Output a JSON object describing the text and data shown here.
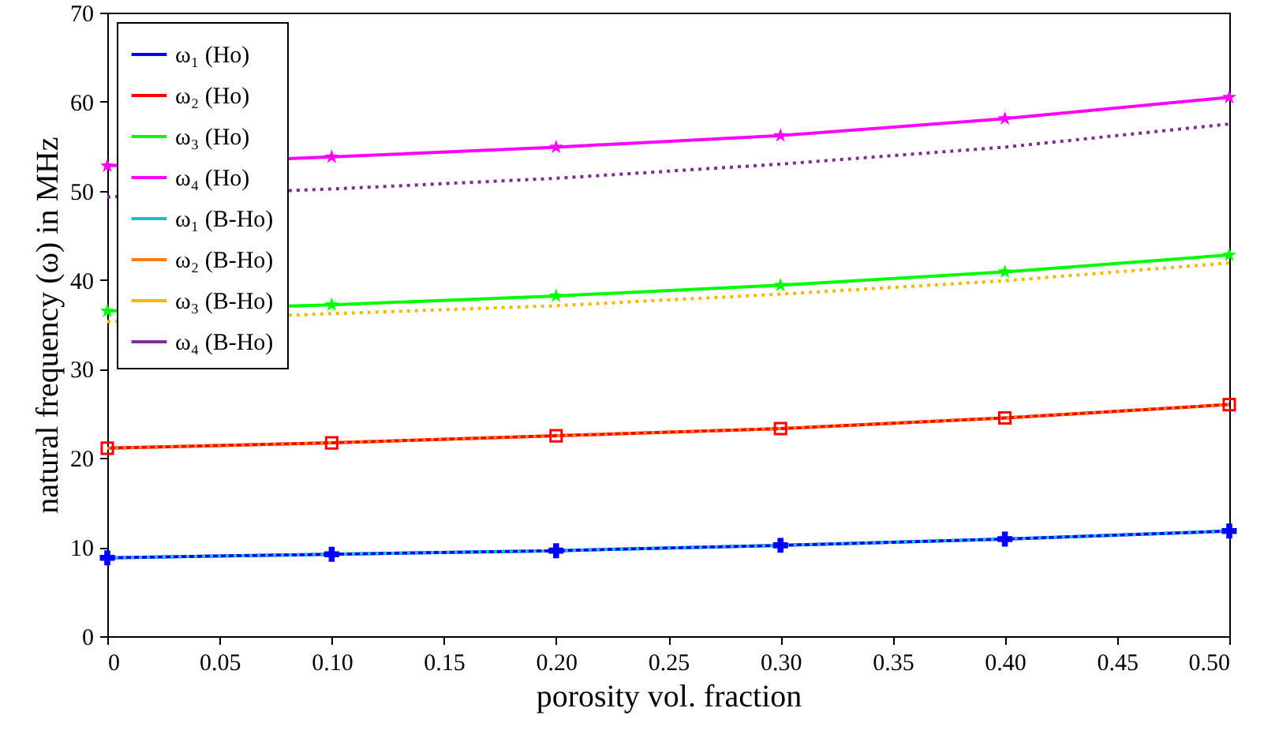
{
  "chart_data": {
    "type": "line",
    "xlabel": "porosity vol. fraction",
    "ylabel": "natural frequency (ω) in MHz",
    "x": [
      0,
      0.1,
      0.2,
      0.3,
      0.4,
      0.5
    ],
    "xlim": [
      0,
      0.5
    ],
    "xticks": [
      0,
      0.05,
      {
        "value": 0.1,
        "label": "0.10"
      },
      0.15,
      {
        "value": 0.2,
        "label": "0.20"
      },
      0.25,
      {
        "value": 0.3,
        "label": "0.30"
      },
      0.35,
      {
        "value": 0.4,
        "label": "0.40"
      },
      0.45,
      {
        "value": 0.5,
        "label": "0.50"
      }
    ],
    "ylim": [
      0,
      70
    ],
    "yticks": [
      0,
      10,
      20,
      30,
      40,
      50,
      60,
      70
    ],
    "grid": false,
    "legend": "top left",
    "series": [
      {
        "name": "ω₁ (Ho)",
        "color": "#0000ff",
        "marker": "cross",
        "line_style": "solid",
        "values": [
          8.8,
          9.2,
          9.6,
          10.2,
          10.9,
          11.8
        ]
      },
      {
        "name": "ω₂ (Ho)",
        "color": "#ff0000",
        "marker": "square",
        "line_style": "solid",
        "values": [
          21.1,
          21.7,
          22.5,
          23.3,
          24.5,
          26.0
        ]
      },
      {
        "name": "ω₃ (Ho)",
        "color": "#00ff00",
        "marker": "star",
        "line_style": "solid",
        "values": [
          36.5,
          37.2,
          38.2,
          39.4,
          40.9,
          42.8
        ]
      },
      {
        "name": "ω₄ (Ho)",
        "color": "#ff00ff",
        "marker": "star",
        "line_style": "solid",
        "values": [
          52.8,
          53.8,
          54.9,
          56.2,
          58.1,
          60.5
        ]
      },
      {
        "name": "ω₁ (B-Ho)",
        "color": "#17becf",
        "marker": "none",
        "line_style": "dotted",
        "values": [
          8.8,
          9.2,
          9.6,
          10.2,
          10.9,
          11.8
        ]
      },
      {
        "name": "ω₂ (B-Ho)",
        "color": "#ff7f0e",
        "marker": "none",
        "line_style": "dotted",
        "values": [
          21.1,
          21.7,
          22.5,
          23.3,
          24.5,
          26.0
        ]
      },
      {
        "name": "ω₃ (B-Ho)",
        "color": "#f5b700",
        "marker": "none",
        "line_style": "dotted",
        "values": [
          35.3,
          36.2,
          37.1,
          38.4,
          39.9,
          41.9
        ]
      },
      {
        "name": "ω₄ (B-Ho)",
        "color": "#7e2f8e",
        "marker": "none",
        "line_style": "dotted",
        "values": [
          49.3,
          50.2,
          51.4,
          53.0,
          54.9,
          57.5
        ]
      }
    ]
  }
}
